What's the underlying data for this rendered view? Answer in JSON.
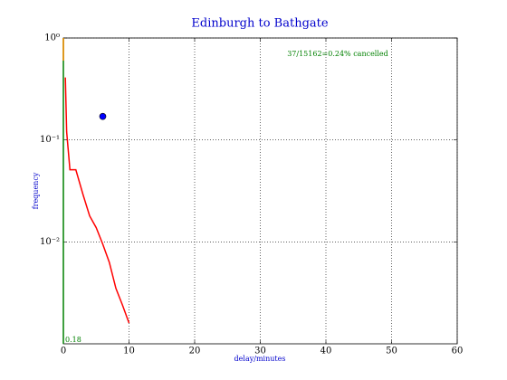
{
  "chart_data": {
    "type": "line",
    "title": "Edinburgh to Bathgate",
    "x_label": "delay/minutes",
    "y_label": "frequency",
    "annotations": [
      "37/15162=0.24% cancelled",
      "0.18"
    ],
    "xlim": [
      0,
      60
    ],
    "xticks": [
      0,
      10,
      20,
      30,
      40,
      50,
      60
    ],
    "ylim": [
      0.001,
      1
    ],
    "y_log": true,
    "yticks": [
      {
        "value": 1,
        "label": "10⁰"
      },
      {
        "value": 0.1,
        "label": "10⁻¹"
      },
      {
        "value": 0.01,
        "label": "10⁻²"
      }
    ],
    "grid": true,
    "series": [
      {
        "color": "#008000",
        "x": [
          0,
          0
        ],
        "values": [
          0.001,
          1
        ]
      },
      {
        "color": "#ff8c00",
        "x": [
          0,
          0
        ],
        "values": [
          1,
          0.6
        ]
      },
      {
        "color": "#ff0000",
        "x": [
          0.3,
          0.5,
          0.5,
          1,
          1.9,
          3,
          4,
          5,
          6,
          7,
          8,
          9,
          10
        ],
        "values": [
          0.41,
          0.12,
          0.12,
          0.051,
          0.051,
          0.029,
          0.018,
          0.0138,
          0.0095,
          0.0063,
          0.0035,
          0.0024,
          0.0016
        ]
      },
      {
        "color": "#0000ff",
        "marker": "point",
        "x": [
          6
        ],
        "values": [
          0.17
        ]
      }
    ]
  }
}
